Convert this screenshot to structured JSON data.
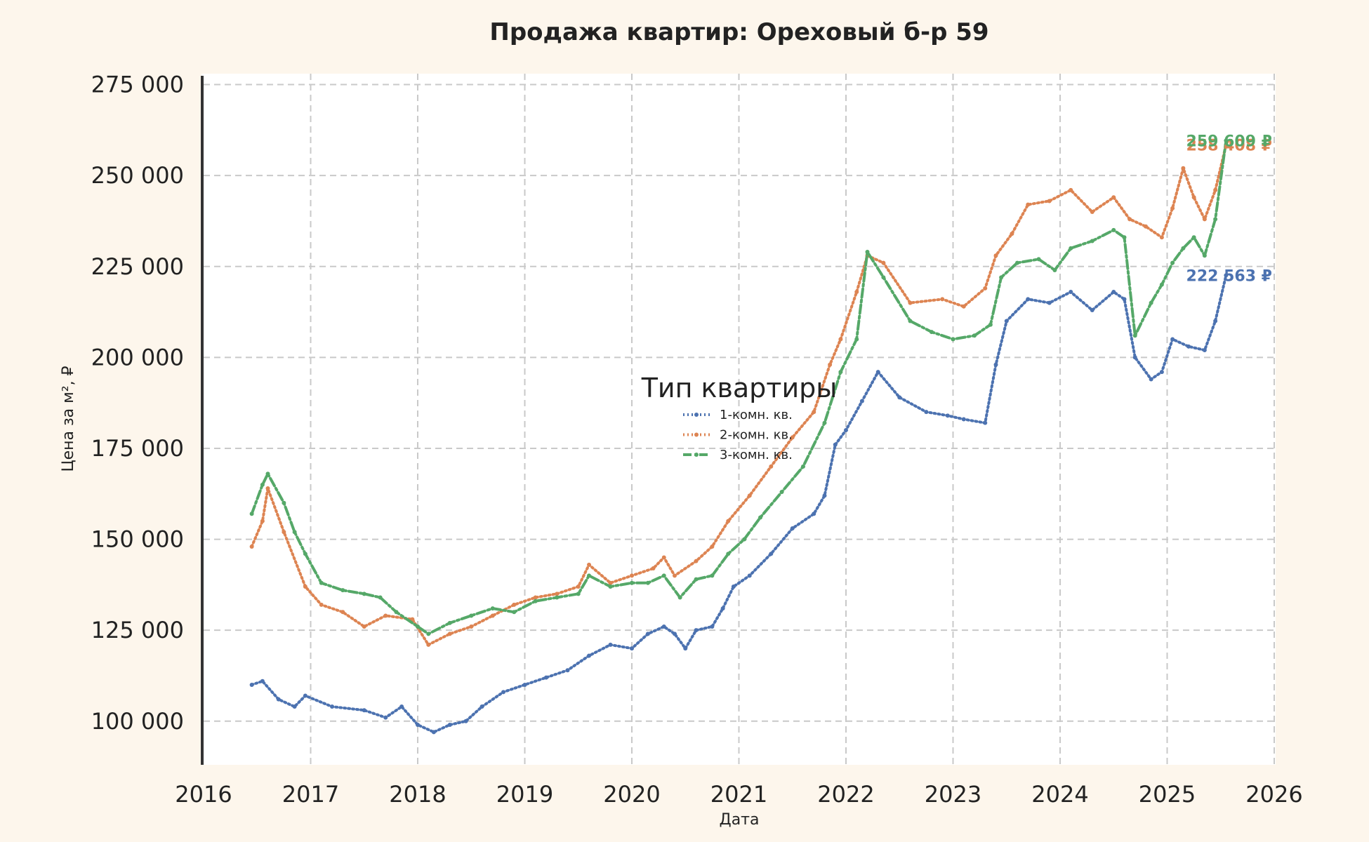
{
  "chart_data": {
    "type": "line",
    "title": "Продажа квартир: Ореховый б-р 59",
    "xlabel": "Дата",
    "ylabel": "Цена за м², ₽",
    "xlim": [
      2016,
      2026
    ],
    "ylim": [
      88000,
      278000
    ],
    "x_ticks": [
      "2016",
      "2017",
      "2018",
      "2019",
      "2020",
      "2021",
      "2022",
      "2023",
      "2024",
      "2025",
      "2026"
    ],
    "y_ticks": [
      "100 000",
      "125 000",
      "150 000",
      "175 000",
      "200 000",
      "225 000",
      "250 000",
      "275 000"
    ],
    "y_tick_values": [
      100000,
      125000,
      150000,
      175000,
      200000,
      225000,
      250000,
      275000
    ],
    "grid": true,
    "legend": {
      "title": "Тип квартиры",
      "placement": "center"
    },
    "series": [
      {
        "name": "1-комн. кв.",
        "color": "#4c72b0",
        "style": "dotted",
        "end_label": "222 563 ₽",
        "x": [
          2016.45,
          2016.55,
          2016.7,
          2016.85,
          2016.95,
          2017.2,
          2017.5,
          2017.7,
          2017.85,
          2018.0,
          2018.15,
          2018.3,
          2018.45,
          2018.6,
          2018.8,
          2019.0,
          2019.2,
          2019.4,
          2019.6,
          2019.8,
          2020.0,
          2020.15,
          2020.3,
          2020.4,
          2020.5,
          2020.6,
          2020.75,
          2020.85,
          2020.95,
          2021.1,
          2021.3,
          2021.5,
          2021.7,
          2021.8,
          2021.9,
          2022.0,
          2022.15,
          2022.3,
          2022.5,
          2022.75,
          2022.95,
          2023.1,
          2023.3,
          2023.4,
          2023.5,
          2023.7,
          2023.9,
          2024.1,
          2024.3,
          2024.5,
          2024.6,
          2024.7,
          2024.85,
          2024.95,
          2025.05,
          2025.2,
          2025.35,
          2025.45,
          2025.55
        ],
        "values": [
          110000,
          111000,
          106000,
          104000,
          107000,
          104000,
          103000,
          101000,
          104000,
          99000,
          97000,
          99000,
          100000,
          104000,
          108000,
          110000,
          112000,
          114000,
          118000,
          121000,
          120000,
          124000,
          126000,
          124000,
          120000,
          125000,
          126000,
          131000,
          137000,
          140000,
          146000,
          153000,
          157000,
          162000,
          176000,
          180000,
          188000,
          196000,
          189000,
          185000,
          184000,
          183000,
          182000,
          198000,
          210000,
          216000,
          215000,
          218000,
          213000,
          218000,
          216000,
          200000,
          194000,
          196000,
          205000,
          203000,
          202000,
          210000,
          222563
        ]
      },
      {
        "name": "2-комн. кв.",
        "color": "#dd8452",
        "style": "dotted",
        "end_label": "258 408 ₽",
        "x": [
          2016.45,
          2016.55,
          2016.6,
          2016.75,
          2016.95,
          2017.1,
          2017.3,
          2017.5,
          2017.7,
          2017.95,
          2018.1,
          2018.3,
          2018.5,
          2018.7,
          2018.9,
          2019.1,
          2019.3,
          2019.5,
          2019.6,
          2019.8,
          2020.0,
          2020.2,
          2020.3,
          2020.4,
          2020.6,
          2020.75,
          2020.9,
          2021.1,
          2021.3,
          2021.5,
          2021.7,
          2021.85,
          2021.95,
          2022.1,
          2022.2,
          2022.35,
          2022.6,
          2022.9,
          2023.1,
          2023.3,
          2023.4,
          2023.55,
          2023.7,
          2023.9,
          2024.1,
          2024.3,
          2024.5,
          2024.65,
          2024.8,
          2024.95,
          2025.05,
          2025.15,
          2025.25,
          2025.35,
          2025.45,
          2025.55
        ],
        "values": [
          148000,
          155000,
          164000,
          152000,
          137000,
          132000,
          130000,
          126000,
          129000,
          128000,
          121000,
          124000,
          126000,
          129000,
          132000,
          134000,
          135000,
          137000,
          143000,
          138000,
          140000,
          142000,
          145000,
          140000,
          144000,
          148000,
          155000,
          162000,
          170000,
          178000,
          185000,
          198000,
          205000,
          218000,
          228000,
          226000,
          215000,
          216000,
          214000,
          219000,
          228000,
          234000,
          242000,
          243000,
          246000,
          240000,
          244000,
          238000,
          236000,
          233000,
          241000,
          252000,
          244000,
          238000,
          246000,
          258408
        ]
      },
      {
        "name": "3-комн. кв.",
        "color": "#55a868",
        "style": "dash-dot",
        "end_label": "259 609 ₽",
        "x": [
          2016.45,
          2016.55,
          2016.6,
          2016.75,
          2016.85,
          2016.95,
          2017.1,
          2017.3,
          2017.5,
          2017.65,
          2017.8,
          2018.0,
          2018.1,
          2018.3,
          2018.5,
          2018.7,
          2018.9,
          2019.1,
          2019.3,
          2019.5,
          2019.6,
          2019.8,
          2020.0,
          2020.15,
          2020.3,
          2020.45,
          2020.6,
          2020.75,
          2020.9,
          2021.05,
          2021.2,
          2021.4,
          2021.6,
          2021.8,
          2021.95,
          2022.1,
          2022.2,
          2022.35,
          2022.6,
          2022.8,
          2023.0,
          2023.2,
          2023.35,
          2023.45,
          2023.6,
          2023.8,
          2023.95,
          2024.1,
          2024.3,
          2024.5,
          2024.6,
          2024.7,
          2024.85,
          2024.95,
          2025.05,
          2025.15,
          2025.25,
          2025.35,
          2025.45,
          2025.55
        ],
        "values": [
          157000,
          165000,
          168000,
          160000,
          152000,
          146000,
          138000,
          136000,
          135000,
          134000,
          130000,
          126000,
          124000,
          127000,
          129000,
          131000,
          130000,
          133000,
          134000,
          135000,
          140000,
          137000,
          138000,
          138000,
          140000,
          134000,
          139000,
          140000,
          146000,
          150000,
          156000,
          163000,
          170000,
          182000,
          196000,
          205000,
          229000,
          222000,
          210000,
          207000,
          205000,
          206000,
          209000,
          222000,
          226000,
          227000,
          224000,
          230000,
          232000,
          235000,
          233000,
          206000,
          215000,
          220000,
          226000,
          230000,
          233000,
          228000,
          238000,
          259609
        ]
      }
    ]
  }
}
